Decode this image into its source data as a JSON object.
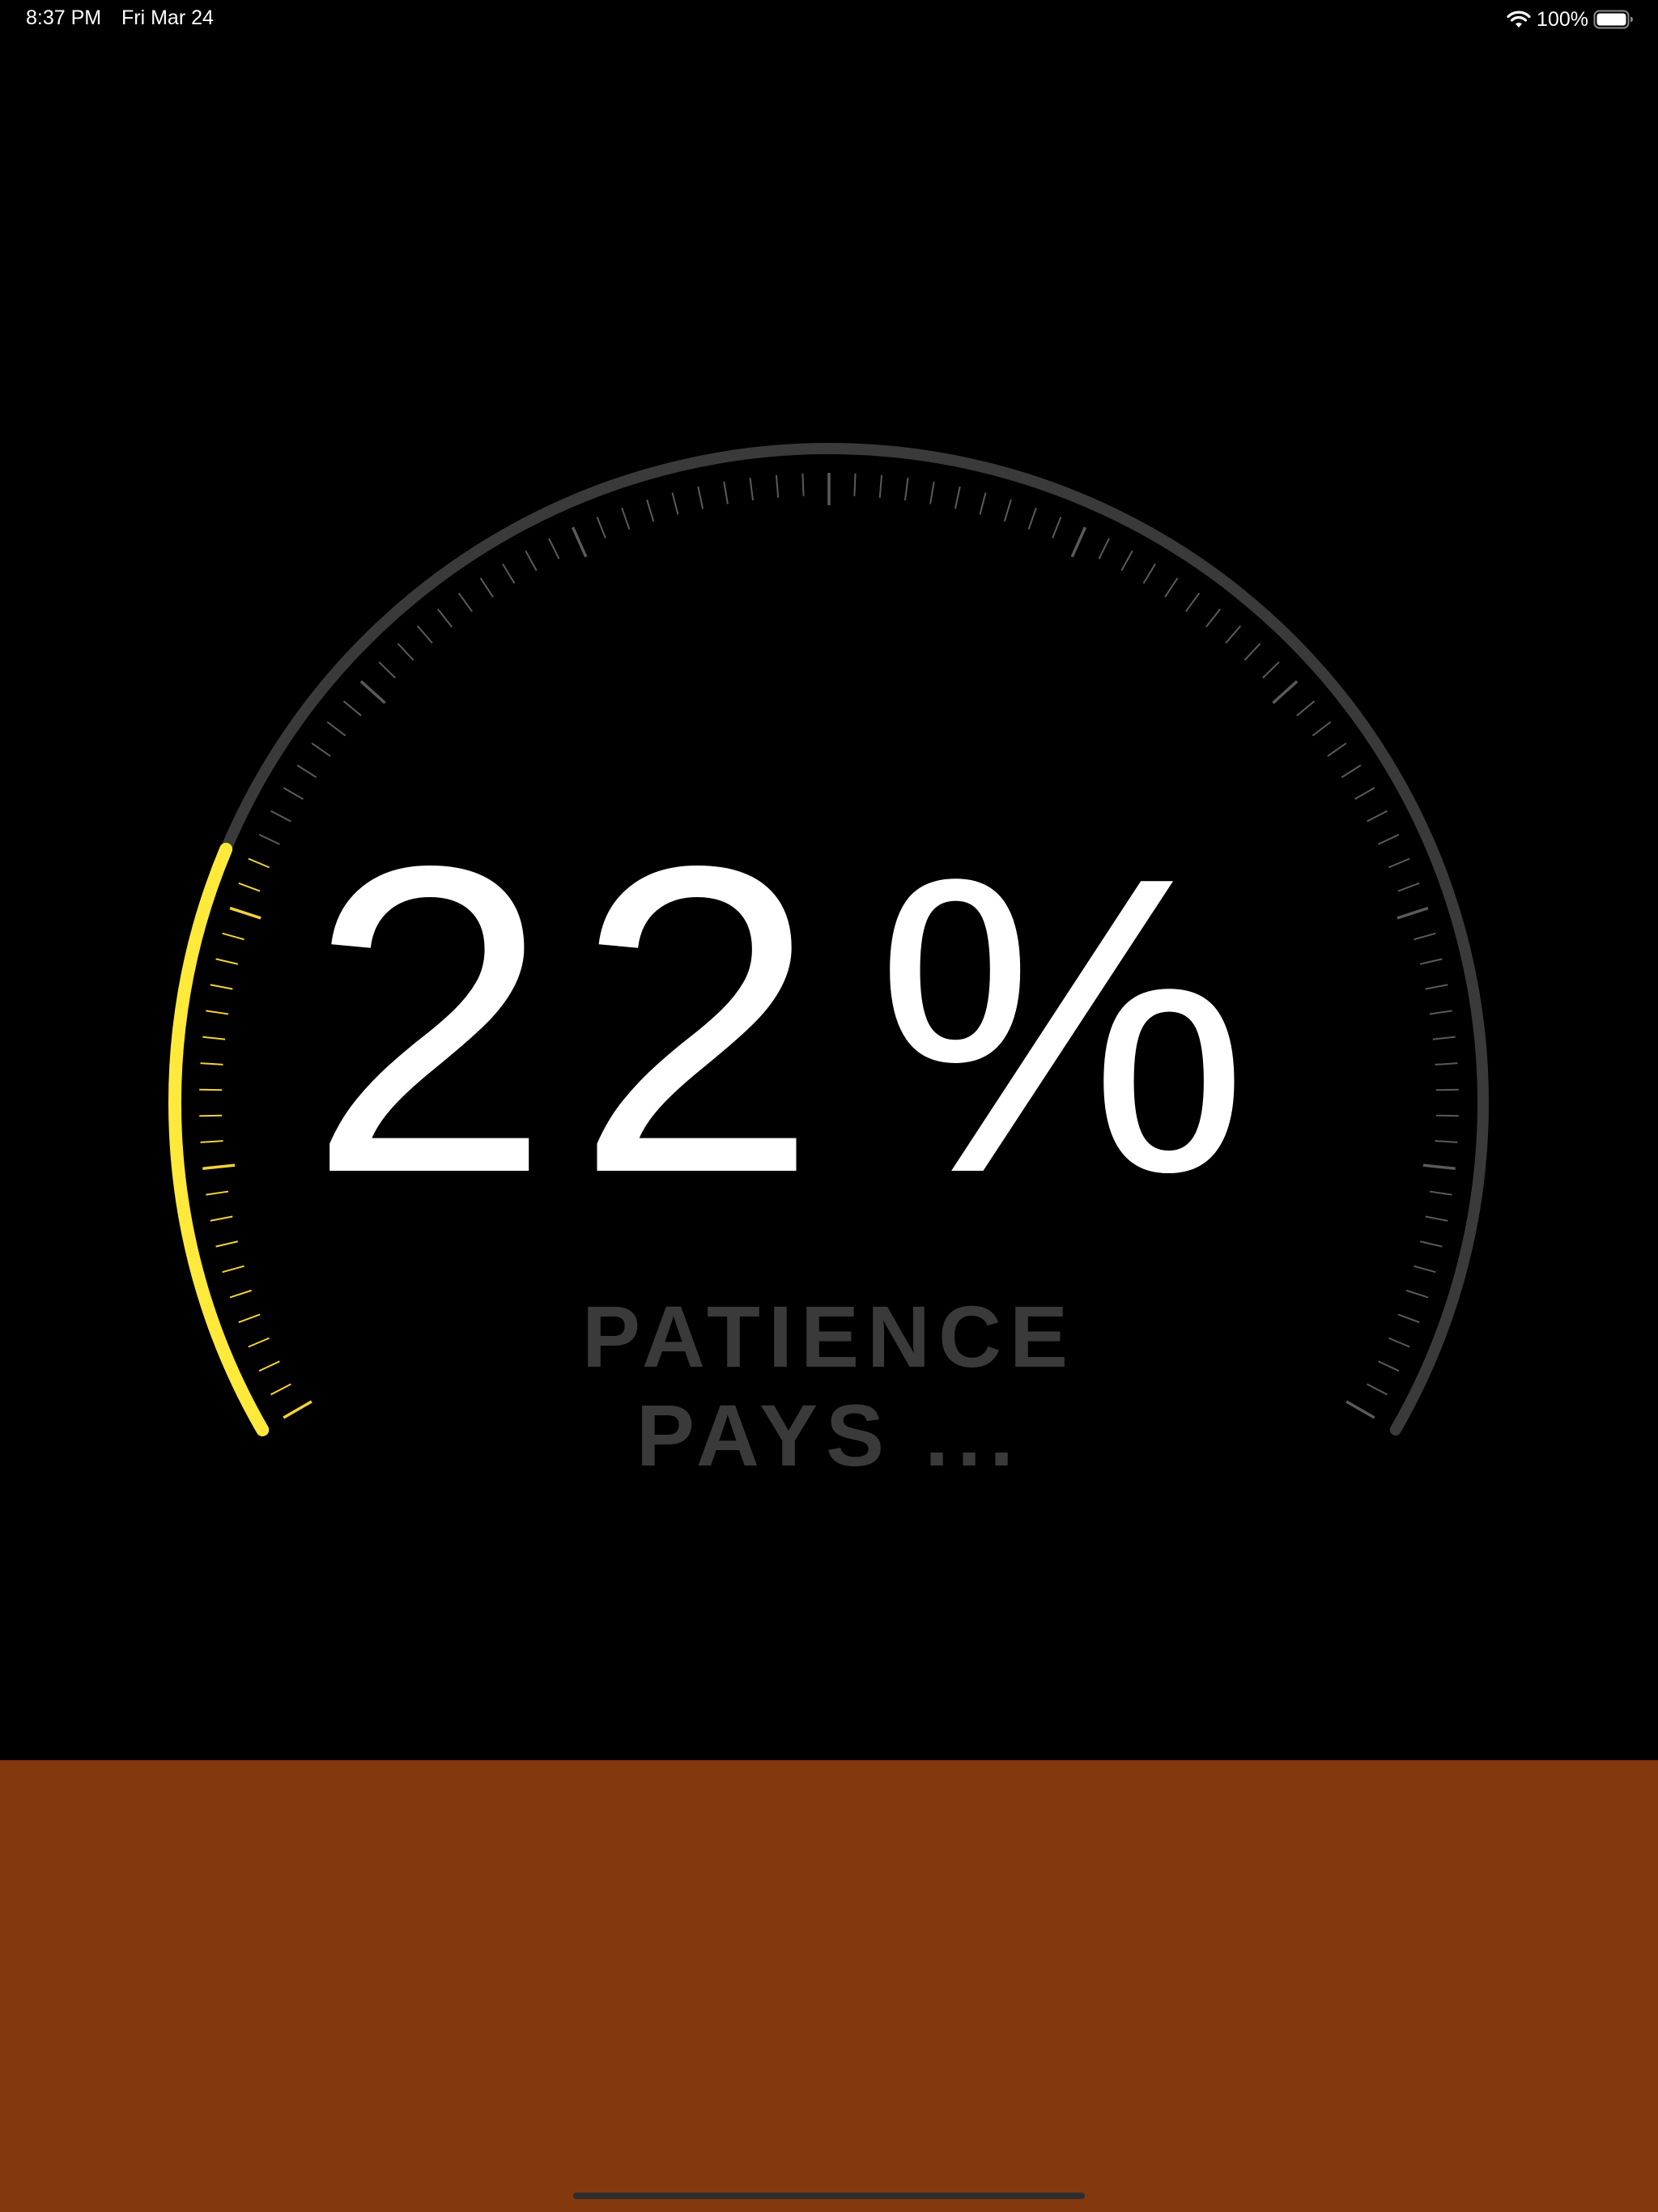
{
  "status_bar": {
    "time": "8:37 PM",
    "date": "Fri Mar 24",
    "battery_percent": "100%",
    "icons": [
      "wifi-icon",
      "battery-icon"
    ]
  },
  "gauge": {
    "progress_fraction": 0.22,
    "track_color": "#3a3a3a",
    "progress_color": "#ffe93b",
    "tick_color": "#5a5a5a",
    "active_tick_color": "#f3d23a"
  },
  "display": {
    "value": "22",
    "unit": "%"
  },
  "message": {
    "line1": "PATIENCE",
    "line2": "PAYS ..."
  },
  "colors": {
    "background": "#000000",
    "bottom_panel": "#84380d",
    "text": "#ffffff",
    "message_text": "#3a3a3a"
  }
}
